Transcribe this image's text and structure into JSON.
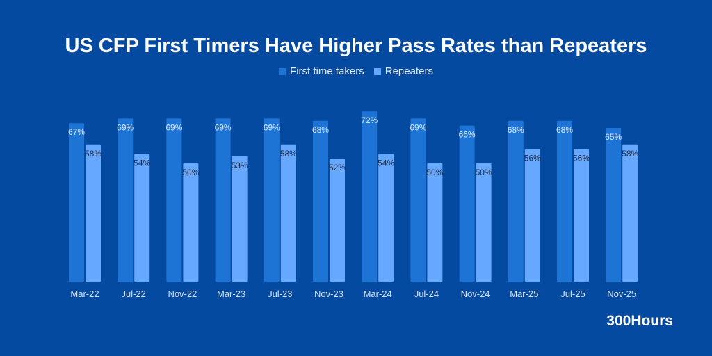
{
  "chart_data": {
    "type": "bar",
    "title": "US CFP First Timers Have Higher Pass Rates than Repeaters",
    "categories": [
      "Mar-22",
      "Jul-22",
      "Nov-22",
      "Mar-23",
      "Jul-23",
      "Nov-23",
      "Mar-24",
      "Jul-24",
      "Nov-24",
      "Mar-25",
      "Jul-25",
      "Nov-25"
    ],
    "series": [
      {
        "name": "First time takers",
        "color": "#1e74d4",
        "values": [
          67,
          69,
          69,
          69,
          69,
          68,
          72,
          69,
          66,
          68,
          68,
          65
        ]
      },
      {
        "name": "Repeaters",
        "color": "#66a8ff",
        "values": [
          58,
          54,
          50,
          53,
          58,
          52,
          54,
          50,
          50,
          56,
          56,
          58
        ]
      }
    ],
    "value_format": "%",
    "ylim": [
      0,
      100
    ],
    "grid": false,
    "legend": "top"
  },
  "brand": "300Hours",
  "colors": {
    "background": "#034aa0"
  }
}
